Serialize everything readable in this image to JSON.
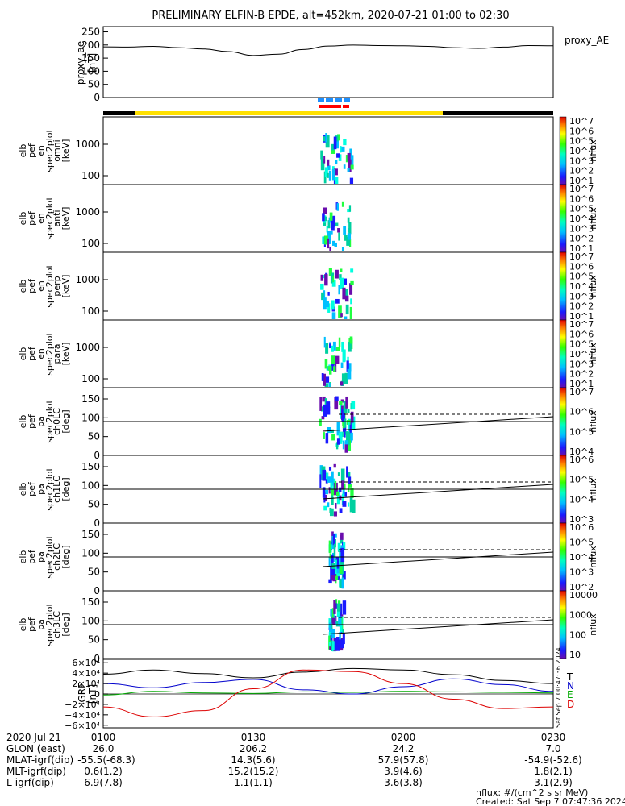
{
  "title": "PRELIMINARY ELFIN-B EPDE, alt=452km, 2020-07-21 01:00 to 02:30",
  "colors": {
    "yellow": "#ffe000",
    "black": "#000000",
    "red": "#ff0000",
    "blue": "#1e90ff",
    "grf_T": "#000000",
    "grf_N": "#0000cc",
    "grf_E": "#00aa00",
    "grf_D": "#dd0000"
  },
  "chart_data": [
    {
      "type": "line",
      "id": "proxy_ae",
      "ylabel": [
        "proxy_ae",
        "[nT]"
      ],
      "legend": "proxy_AE",
      "ylim": [
        0,
        270
      ],
      "yticks": [
        "250",
        "200",
        "150",
        "100",
        "50",
        "0"
      ],
      "x_minutes": [
        0,
        5,
        10,
        15,
        20,
        25,
        30,
        35,
        40,
        45,
        50,
        55,
        60,
        65,
        70,
        75,
        80,
        85,
        90
      ],
      "values": [
        193,
        192,
        195,
        190,
        185,
        175,
        160,
        165,
        183,
        196,
        200,
        198,
        197,
        195,
        190,
        187,
        192,
        198,
        197
      ]
    },
    {
      "type": "heatmap",
      "id": "spec_omni",
      "ylabel": [
        "elb",
        "pef",
        "en",
        "spec2plot",
        "omni",
        "[keV]"
      ],
      "yticks": [
        "1000",
        "100"
      ],
      "colorbar_label": "nflux",
      "colorbar_ticks": [
        "10^7",
        "10^6",
        "10^5",
        "10^4",
        "10^3",
        "10^2",
        "10^1"
      ]
    },
    {
      "type": "heatmap",
      "id": "spec_anti",
      "ylabel": [
        "elb",
        "pef",
        "en",
        "spec2plot",
        "anti",
        "[keV]"
      ],
      "yticks": [
        "1000",
        "100"
      ],
      "colorbar_label": "nflux",
      "colorbar_ticks": [
        "10^7",
        "10^6",
        "10^5",
        "10^4",
        "10^3",
        "10^2",
        "10^1"
      ]
    },
    {
      "type": "heatmap",
      "id": "spec_perp",
      "ylabel": [
        "elb",
        "pef",
        "en",
        "spec2plot",
        "perp",
        "[keV]"
      ],
      "yticks": [
        "1000",
        "100"
      ],
      "colorbar_label": "nflux",
      "colorbar_ticks": [
        "10^7",
        "10^6",
        "10^5",
        "10^4",
        "10^3",
        "10^2",
        "10^1"
      ]
    },
    {
      "type": "heatmap",
      "id": "spec_para",
      "ylabel": [
        "elb",
        "pef",
        "en",
        "spec2plot",
        "para",
        "[keV]"
      ],
      "yticks": [
        "1000",
        "100"
      ],
      "colorbar_label": "nflux",
      "colorbar_ticks": [
        "10^7",
        "10^6",
        "10^5",
        "10^4",
        "10^3",
        "10^2",
        "10^1"
      ]
    },
    {
      "type": "heatmap",
      "id": "pa_ch0",
      "ylabel": [
        "elb",
        "pef",
        "pa",
        "spec2plot",
        "ch0LC",
        "[deg]"
      ],
      "yticks": [
        "150",
        "100",
        "50",
        "0"
      ],
      "colorbar_label": "nflux",
      "colorbar_ticks": [
        "10^7",
        "10^6",
        "10^5",
        "10^4"
      ]
    },
    {
      "type": "heatmap",
      "id": "pa_ch1",
      "ylabel": [
        "elb",
        "pef",
        "pa",
        "spec2plot",
        "ch1LC",
        "[deg]"
      ],
      "yticks": [
        "150",
        "100",
        "50",
        "0"
      ],
      "colorbar_label": "nflux",
      "colorbar_ticks": [
        "10^6",
        "10^5",
        "10^4",
        "10^3"
      ]
    },
    {
      "type": "heatmap",
      "id": "pa_ch2",
      "ylabel": [
        "elb",
        "pef",
        "pa",
        "spec2plot",
        "ch2LC",
        "[deg]"
      ],
      "yticks": [
        "150",
        "100",
        "50",
        "0"
      ],
      "colorbar_label": "nflux",
      "colorbar_ticks": [
        "10^6",
        "10^5",
        "10^4",
        "10^3",
        "10^2"
      ]
    },
    {
      "type": "heatmap",
      "id": "pa_ch3",
      "ylabel": [
        "elb",
        "pef",
        "pa",
        "spec2plot",
        "ch3LC",
        "[deg]"
      ],
      "yticks": [
        "150",
        "100",
        "50",
        "0"
      ],
      "colorbar_label": "nflux",
      "colorbar_ticks": [
        "10000",
        "1000",
        "100",
        "10"
      ]
    },
    {
      "type": "line",
      "id": "igrf",
      "ylabel": [
        "IGRF",
        "[nT]"
      ],
      "ylim": [
        -65000,
        65000
      ],
      "yticks": [
        "6×10⁴",
        "4×10⁴",
        "2×10⁴",
        "0",
        "−2×10⁴",
        "−4×10⁴",
        "−6×10⁴"
      ],
      "legend": [
        "T",
        "N",
        "E",
        "D"
      ],
      "side_note": "Sat Sep  7 00:47:36 2024",
      "x_minutes": [
        0,
        10,
        20,
        30,
        40,
        50,
        60,
        70,
        80,
        90
      ],
      "series": [
        {
          "name": "T",
          "values": [
            38000,
            46000,
            39000,
            31000,
            42000,
            49000,
            46000,
            37000,
            26000,
            20000
          ]
        },
        {
          "name": "N",
          "values": [
            20000,
            12000,
            22000,
            28000,
            8000,
            0,
            14000,
            29000,
            18000,
            5000
          ]
        },
        {
          "name": "E",
          "values": [
            -2000,
            5000,
            2000,
            1000,
            4000,
            3000,
            5000,
            4000,
            3000,
            2000
          ]
        },
        {
          "name": "D",
          "values": [
            -25000,
            -44000,
            -32000,
            10000,
            46000,
            43000,
            20000,
            -10000,
            -28000,
            -25000
          ]
        }
      ]
    }
  ],
  "bottom_axis": {
    "rows": [
      {
        "label": "2020 Jul 21",
        "values": [
          "0100",
          "0130",
          "0200",
          "0230"
        ]
      },
      {
        "label": "GLON (east)",
        "values": [
          "26.0",
          "206.2",
          "24.2",
          "7.0"
        ]
      },
      {
        "label": "MLAT-igrf(dip)",
        "values": [
          "-55.5(-68.3)",
          "14.3(5.6)",
          "57.9(57.8)",
          "-54.9(-52.6)"
        ]
      },
      {
        "label": "MLT-igrf(dip)",
        "values": [
          "0.6(1.2)",
          "15.2(15.2)",
          "3.9(4.6)",
          "1.8(2.1)"
        ]
      },
      {
        "label": "L-igrf(dip)",
        "values": [
          "6.9(7.8)",
          "1.1(1.1)",
          "3.6(3.8)",
          "3.1(2.9)"
        ]
      }
    ]
  },
  "footer": {
    "units": "nflux: #/(cm^2 s sr MeV)",
    "created": "Created: Sat Sep  7 07:47:36 2024"
  }
}
